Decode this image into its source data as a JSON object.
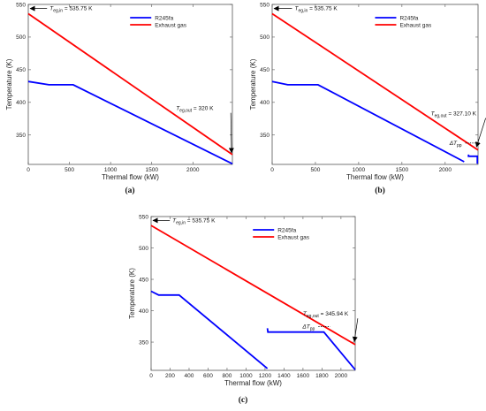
{
  "chart_data": [
    {
      "panel": "a",
      "caption": "(a)",
      "type": "line",
      "xlabel": "Thermal flow (kW)",
      "ylabel": "Temperature (K)",
      "xlim": [
        0,
        2480
      ],
      "ylim": [
        305,
        550
      ],
      "xticks": [
        0,
        500,
        1000,
        1500,
        2000
      ],
      "yticks": [
        350,
        400,
        450,
        500,
        550
      ],
      "legend": "top-center",
      "series": [
        {
          "name": "R245fa",
          "color": "#0000ff",
          "points": [
            [
              0,
              432
            ],
            [
              250,
              427
            ],
            [
              545,
              427
            ],
            [
              2480,
              306
            ]
          ]
        },
        {
          "name": "Exhaust gas",
          "color": "#ff0000",
          "points": [
            [
              0,
              535.75
            ],
            [
              2480,
              320
            ]
          ]
        }
      ],
      "annotations": [
        {
          "main": "T",
          "sub": "eg,in",
          "value": " = 535.75 K",
          "point": [
            0,
            535.75
          ],
          "text_at": [
            260,
            541
          ],
          "arrow_dir": "left"
        },
        {
          "main": "T",
          "sub": "eg,out",
          "value": " = 320 K",
          "point": [
            2480,
            320
          ],
          "text_at": [
            1795,
            388
          ],
          "arrow_dir": "down-right"
        }
      ]
    },
    {
      "panel": "b",
      "caption": "(b)",
      "type": "line",
      "xlabel": "Thermal flow (kW)",
      "ylabel": "Temperature (K)",
      "xlim": [
        0,
        2380
      ],
      "ylim": [
        305,
        550
      ],
      "xticks": [
        0,
        500,
        1000,
        1500,
        2000
      ],
      "yticks": [
        350,
        400,
        450,
        500,
        550
      ],
      "legend": "top-center",
      "series": [
        {
          "name": "R245fa",
          "color": "#0000ff",
          "segments": [
            [
              [
                0,
                432
              ],
              [
                180,
                427
              ],
              [
                530,
                427
              ],
              [
                2220,
                309
              ]
            ],
            [
              [
                2270,
                320
              ],
              [
                2270,
                317.5
              ],
              [
                2372,
                317.5
              ],
              [
                2372,
                306
              ]
            ]
          ]
        },
        {
          "name": "Exhaust gas",
          "color": "#ff0000",
          "points": [
            [
              0,
              535.75
            ],
            [
              2380,
              327.1
            ]
          ]
        }
      ],
      "annotations": [
        {
          "main": "T",
          "sub": "eg,in",
          "value": " = 535.75 K",
          "point": [
            0,
            535.75
          ],
          "text_at": [
            260,
            541
          ],
          "arrow_dir": "left"
        },
        {
          "main": "T",
          "sub": "eg,out",
          "value": " = 327.10 K",
          "point": [
            2372,
            329
          ],
          "text_at": [
            1835,
            380
          ],
          "arrow_dir": "down-right"
        },
        {
          "main": "ΔT",
          "sub": "pp",
          "value": "",
          "point": [
            2300,
            321
          ],
          "text_at": [
            2050,
            335
          ],
          "arrow_dir": "none"
        }
      ]
    },
    {
      "panel": "c",
      "caption": "(c)",
      "type": "line",
      "xlabel": "Thermal flow (kW)",
      "ylabel": "Temperature (K)",
      "xlim": [
        0,
        2150
      ],
      "ylim": [
        305,
        550
      ],
      "xticks": [
        0,
        200,
        400,
        600,
        800,
        1000,
        1200,
        1400,
        1600,
        1800,
        2000
      ],
      "yticks": [
        350,
        400,
        450,
        500,
        550
      ],
      "legend": "top-center",
      "series": [
        {
          "name": "R245fa",
          "color": "#0000ff",
          "segments": [
            [
              [
                0,
                431
              ],
              [
                80,
                425
              ],
              [
                295,
                425
              ],
              [
                1225,
                308
              ]
            ],
            [
              [
                1225,
                372
              ],
              [
                1230,
                366
              ],
              [
                1820,
                366
              ],
              [
                2150,
                306
              ]
            ]
          ]
        },
        {
          "name": "Exhaust gas",
          "color": "#ff0000",
          "points": [
            [
              0,
              535.75
            ],
            [
              2150,
              345.94
            ]
          ]
        }
      ],
      "annotations": [
        {
          "main": "T",
          "sub": "eg,in",
          "value": " = 535.75 K",
          "point": [
            0,
            535.75
          ],
          "text_at": [
            225,
            541
          ],
          "arrow_dir": "left"
        },
        {
          "main": "T",
          "sub": "eg,out",
          "value": " = 345.94 K",
          "point": [
            2150,
            348
          ],
          "text_at": [
            1600,
            392
          ],
          "arrow_dir": "down-right"
        },
        {
          "main": "ΔT",
          "sub": "pp",
          "value": "",
          "point": [
            1830,
            368
          ],
          "text_at": [
            1595,
            372
          ],
          "arrow_dir": "none"
        }
      ]
    }
  ]
}
